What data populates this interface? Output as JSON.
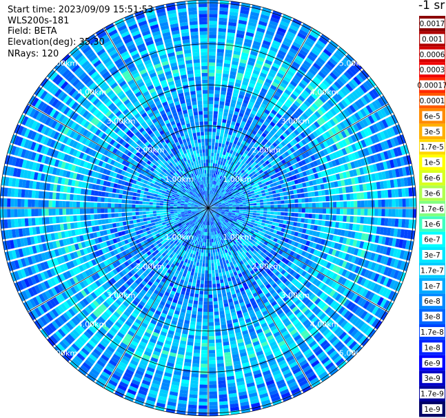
{
  "header": {
    "start_time": "Start time: 2023/09/09 15:51:53",
    "instrument": "WLS200s-181",
    "field": "Field: BETA",
    "elevation": "Elevation(deg): 35.30",
    "nrays": "NRays: 120"
  },
  "colorbar": {
    "unit_label": "-1 sr",
    "labels": [
      "0.0017",
      "0.001",
      "0.0006",
      "0.0003",
      "0.00017",
      "0.0001",
      "6e-5",
      "3e-5",
      "1.7e-5",
      "1e-5",
      "6e-6",
      "3e-6",
      "1.7e-6",
      "1e-6",
      "6e-7",
      "3e-7",
      "1.7e-7",
      "1e-7",
      "6e-8",
      "3e-8",
      "1.7e-8",
      "1e-8",
      "6e-9",
      "3e-9",
      "1.7e-9",
      "1e-9"
    ],
    "colors": [
      "#8b0000",
      "#b00000",
      "#d40000",
      "#f00000",
      "#ff2a00",
      "#ff5a00",
      "#ff8a00",
      "#ffb000",
      "#ffd800",
      "#ffff00",
      "#d8ff20",
      "#b0ff50",
      "#80ff80",
      "#40ffc0",
      "#00ffff",
      "#00e8ff",
      "#00ccff",
      "#00aaff",
      "#0088ff",
      "#0066ff",
      "#0044ff",
      "#0022ff",
      "#0000ff",
      "#0000c8",
      "#000098",
      "#000068"
    ]
  },
  "chart_data": {
    "type": "polar (PPI scan)",
    "field": "BETA",
    "n_rays": 120,
    "range_rings_km": [
      1,
      2,
      3,
      4,
      5
    ],
    "ring_labels": [
      "1.00km",
      "2.00km",
      "3.00km",
      "4.00km",
      "5.00km"
    ],
    "radial_spokes_deg": [
      0,
      30,
      60,
      90,
      120,
      150,
      180,
      210,
      240,
      270,
      300,
      330
    ]
  }
}
